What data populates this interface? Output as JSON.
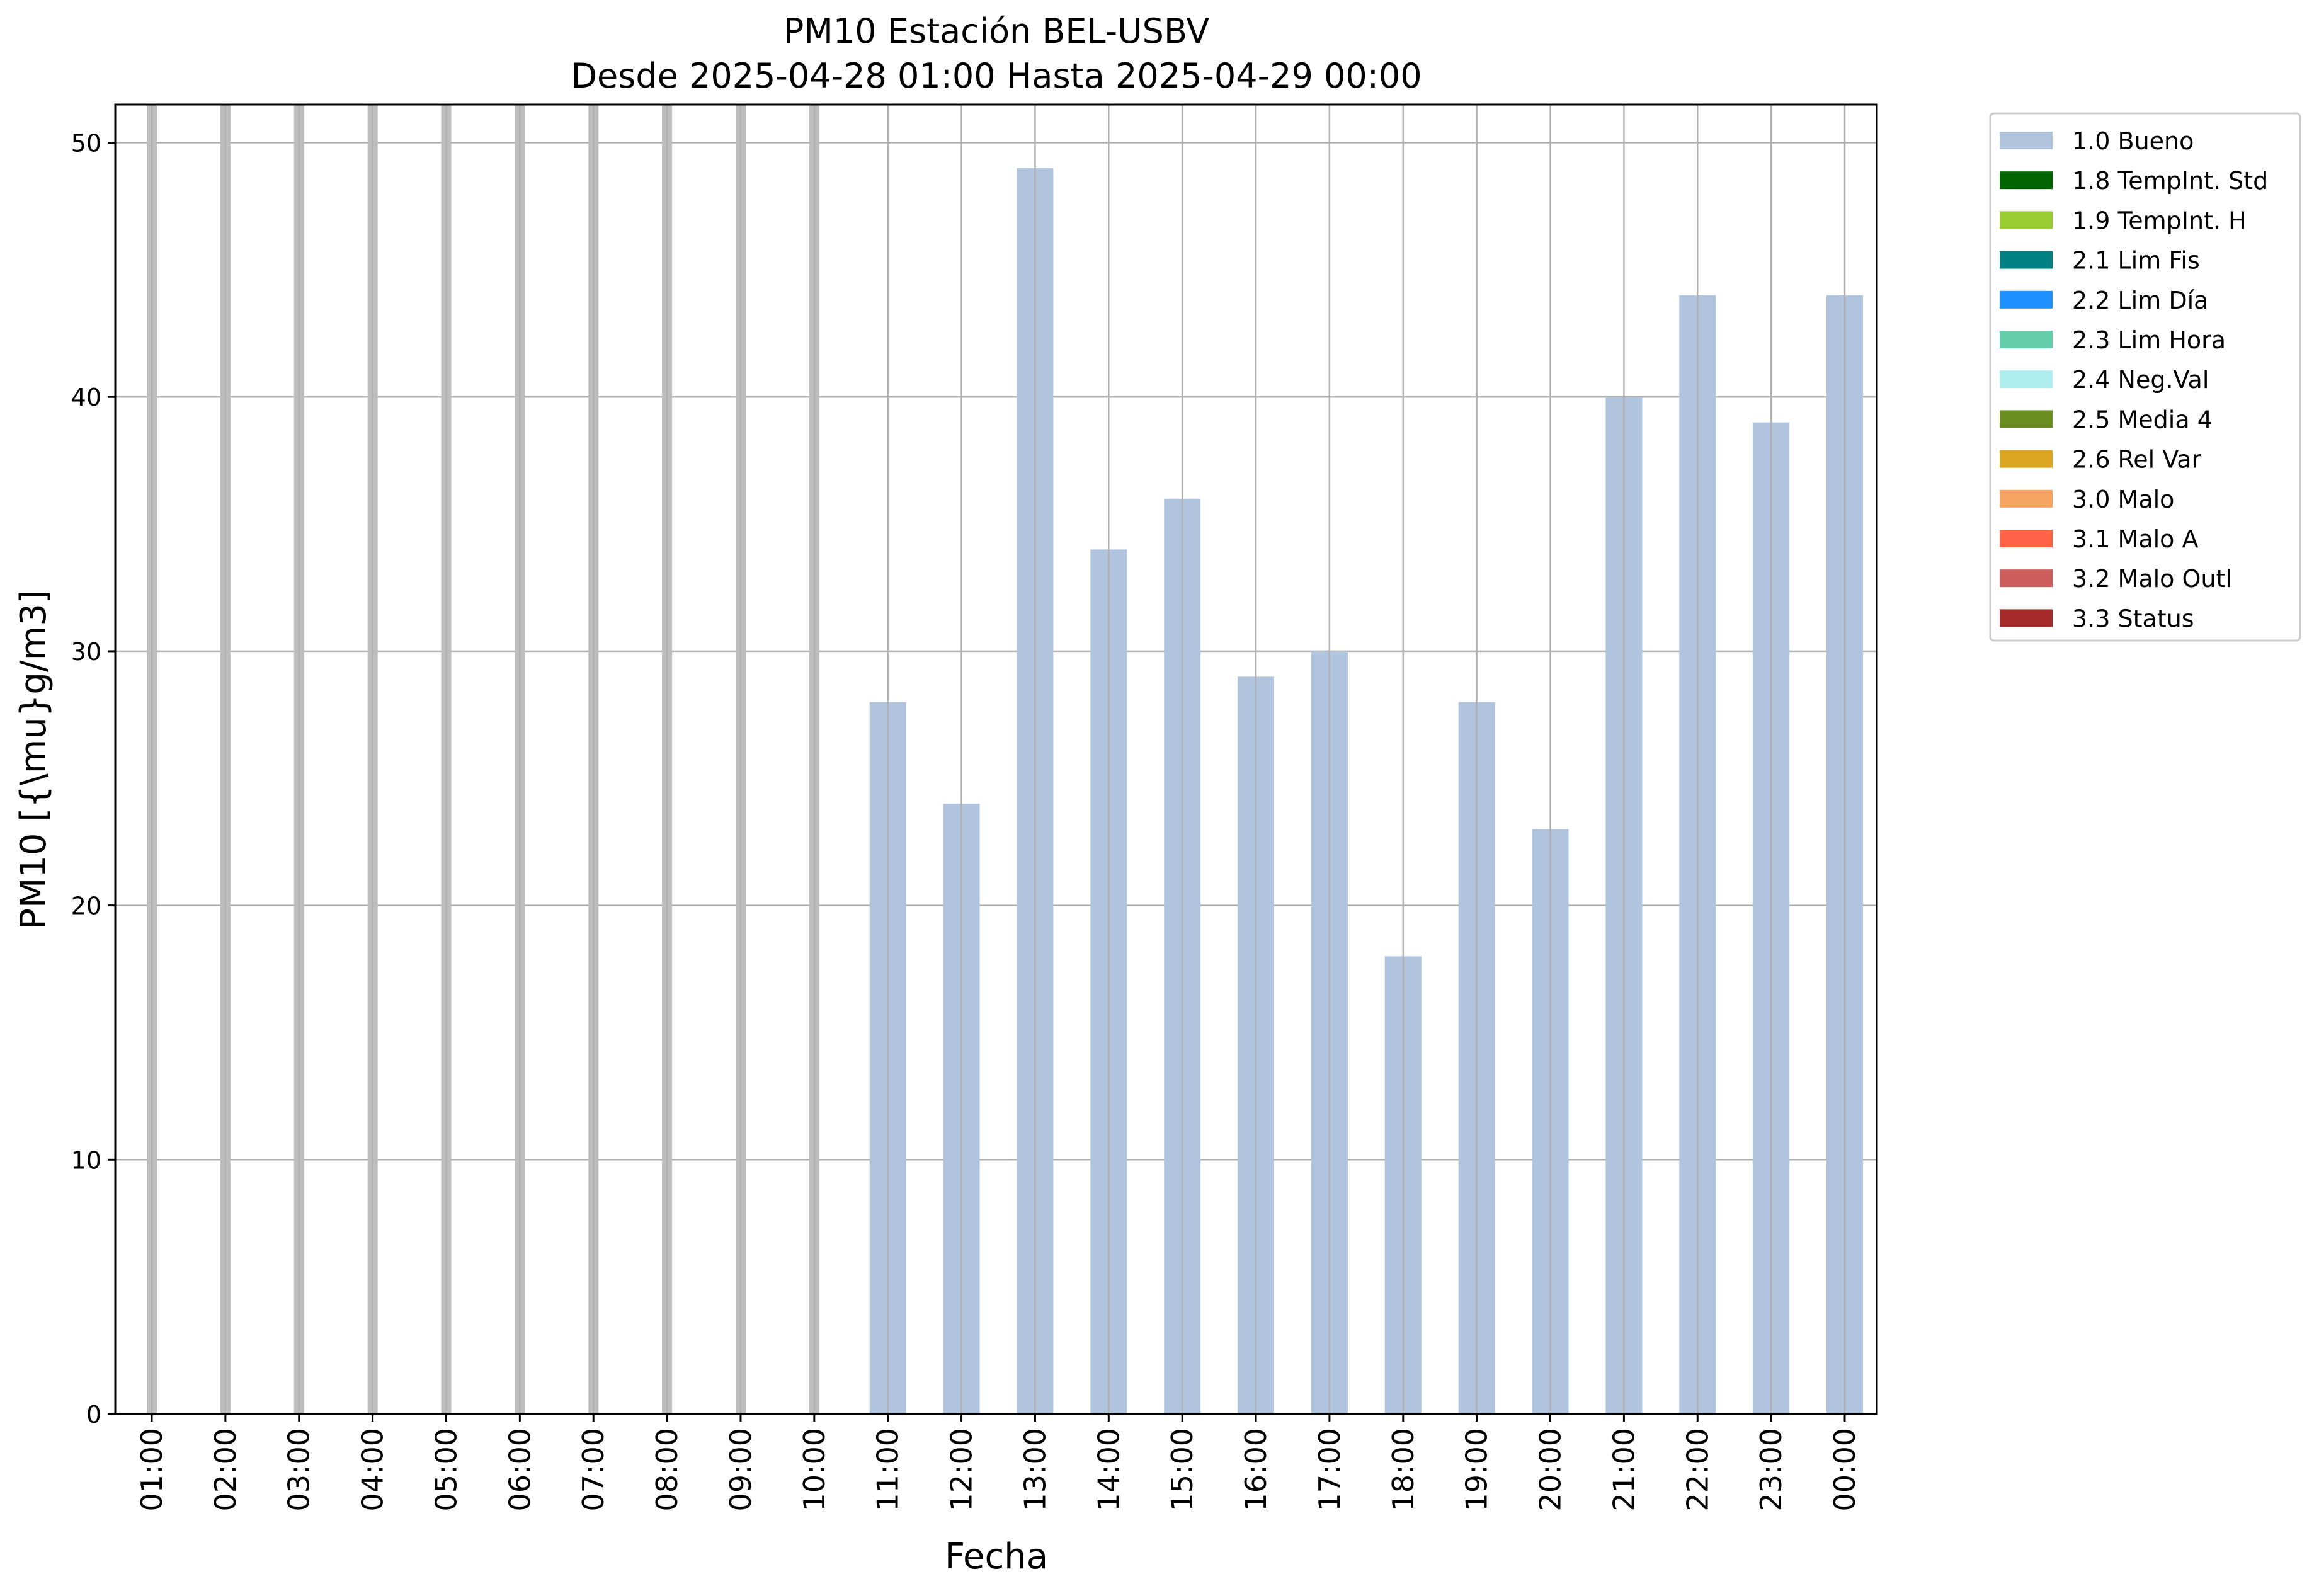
{
  "chart_data": {
    "type": "bar",
    "title": "PM10 Estación BEL-USBV",
    "subtitle": "Desde 2025-04-28 01:00 Hasta 2025-04-29 00:00",
    "xlabel": "Fecha",
    "ylabel": "PM10 [{\\mu}g/m3]",
    "ylim": [
      0,
      51.5
    ],
    "yticks": [
      0,
      10,
      20,
      30,
      40,
      50
    ],
    "ytick_labels": [
      "0",
      "10",
      "20",
      "30",
      "40",
      "50"
    ],
    "grid": true,
    "legend_position": "outside right, top",
    "categories": [
      "01:00",
      "02:00",
      "03:00",
      "04:00",
      "05:00",
      "06:00",
      "07:00",
      "08:00",
      "09:00",
      "10:00",
      "11:00",
      "12:00",
      "13:00",
      "14:00",
      "15:00",
      "16:00",
      "17:00",
      "18:00",
      "19:00",
      "20:00",
      "21:00",
      "22:00",
      "23:00",
      "00:00"
    ],
    "values": [
      null,
      null,
      null,
      null,
      null,
      null,
      null,
      null,
      null,
      null,
      28,
      24,
      49,
      34,
      36,
      29,
      30,
      18,
      28,
      23,
      40,
      44,
      39,
      44
    ],
    "missing_marker_color": "#bdbdbd",
    "series": [
      {
        "name": "1.0 Bueno",
        "color": "#b0c4de"
      },
      {
        "name": "1.8 TempInt. Std",
        "color": "#006400"
      },
      {
        "name": "1.9 TempInt. H",
        "color": "#9acd32"
      },
      {
        "name": "2.1 Lim Fis",
        "color": "#008080"
      },
      {
        "name": "2.2 Lim Día",
        "color": "#1e90ff"
      },
      {
        "name": "2.3 Lim Hora",
        "color": "#66cdaa"
      },
      {
        "name": "2.4 Neg.Val",
        "color": "#afeeee"
      },
      {
        "name": "2.5 Media 4",
        "color": "#6b8e23"
      },
      {
        "name": "2.6 Rel Var",
        "color": "#daa520"
      },
      {
        "name": "3.0 Malo",
        "color": "#f4a460"
      },
      {
        "name": "3.1 Malo A",
        "color": "#ff6347"
      },
      {
        "name": "3.2 Malo Outl",
        "color": "#cd5c5c"
      },
      {
        "name": "3.3 Status",
        "color": "#a52a2a"
      }
    ]
  }
}
